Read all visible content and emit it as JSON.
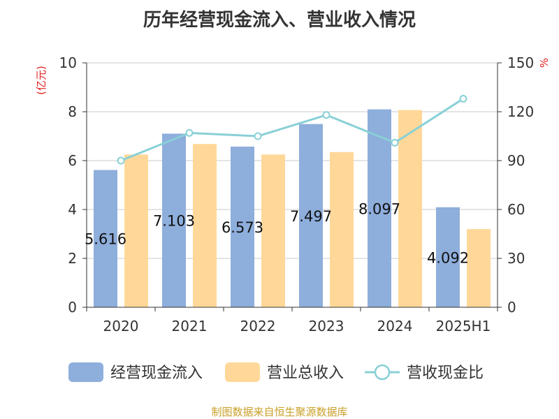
{
  "chart_data": {
    "type": "bar",
    "title": "历年经营现金流入、营业收入情况",
    "categories": [
      "2020",
      "2021",
      "2022",
      "2023",
      "2024",
      "2025H1"
    ],
    "y_left": {
      "label": "(亿元)",
      "ylim": [
        0,
        10
      ],
      "ticks": [
        0,
        2,
        4,
        6,
        8,
        10
      ]
    },
    "y_right": {
      "label": "%",
      "ylim": [
        0,
        150
      ],
      "ticks": [
        0,
        30,
        60,
        90,
        120,
        150
      ]
    },
    "series": [
      {
        "name": "经营现金流入",
        "type": "bar",
        "axis": "left",
        "color": "#8eaedc",
        "values": [
          5.616,
          7.103,
          6.573,
          7.497,
          8.097,
          4.092
        ],
        "data_labels": [
          "5.616",
          "7.103",
          "6.573",
          "7.497",
          "8.097",
          "4.092"
        ]
      },
      {
        "name": "营业总收入",
        "type": "bar",
        "axis": "left",
        "color": "#ffd899",
        "values": [
          6.25,
          6.68,
          6.25,
          6.35,
          8.07,
          3.2
        ]
      },
      {
        "name": "营收现金比",
        "type": "line",
        "axis": "right",
        "color": "#88d0d6",
        "values": [
          90,
          107,
          105,
          118,
          101,
          128
        ]
      }
    ],
    "grid": true,
    "legend_position": "bottom"
  },
  "source_text": "制图数据来自恒生聚源数据库"
}
